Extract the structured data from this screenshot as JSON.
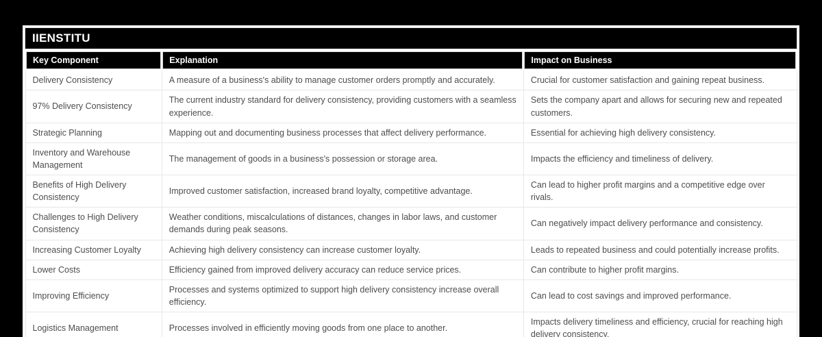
{
  "title": "IIENSTITU",
  "colors": {
    "page_background": "#000000",
    "panel_background": "#ffffff",
    "header_background": "#000000",
    "header_text": "#ffffff",
    "body_text": "#4d4d4d",
    "grid_border": "#e7e7e7"
  },
  "table": {
    "columns": [
      "Key Component",
      "Explanation",
      "Impact on Business"
    ],
    "rows": [
      {
        "component": "Delivery Consistency",
        "explanation": "A measure of a business's ability to manage customer orders promptly and accurately.",
        "impact": "Crucial for customer satisfaction and gaining repeat business."
      },
      {
        "component": "97% Delivery Consistency",
        "explanation": "The current industry standard for delivery consistency, providing customers with a seamless experience.",
        "impact": "Sets the company apart and allows for securing new and repeated customers."
      },
      {
        "component": "Strategic Planning",
        "explanation": "Mapping out and documenting business processes that affect delivery performance.",
        "impact": "Essential for achieving high delivery consistency."
      },
      {
        "component": "Inventory and Warehouse Management",
        "explanation": "The management of goods in a business's possession or storage area.",
        "impact": "Impacts the efficiency and timeliness of delivery."
      },
      {
        "component": "Benefits of High Delivery Consistency",
        "explanation": "Improved customer satisfaction, increased brand loyalty, competitive advantage.",
        "impact": "Can lead to higher profit margins and a competitive edge over rivals."
      },
      {
        "component": "Challenges to High Delivery Consistency",
        "explanation": "Weather conditions, miscalculations of distances, changes in labor laws, and customer demands during peak seasons.",
        "impact": "Can negatively impact delivery performance and consistency."
      },
      {
        "component": "Increasing Customer Loyalty",
        "explanation": "Achieving high delivery consistency can increase customer loyalty.",
        "impact": "Leads to repeated business and could potentially increase profits."
      },
      {
        "component": "Lower Costs",
        "explanation": "Efficiency gained from improved delivery accuracy can reduce service prices.",
        "impact": "Can contribute to higher profit margins."
      },
      {
        "component": "Improving Efficiency",
        "explanation": "Processes and systems optimized to support high delivery consistency increase overall efficiency.",
        "impact": "Can lead to cost savings and improved performance."
      },
      {
        "component": "Logistics Management",
        "explanation": "Processes involved in efficiently moving goods from one place to another.",
        "impact": "Impacts delivery timeliness and efficiency, crucial for reaching high delivery consistency."
      }
    ]
  }
}
